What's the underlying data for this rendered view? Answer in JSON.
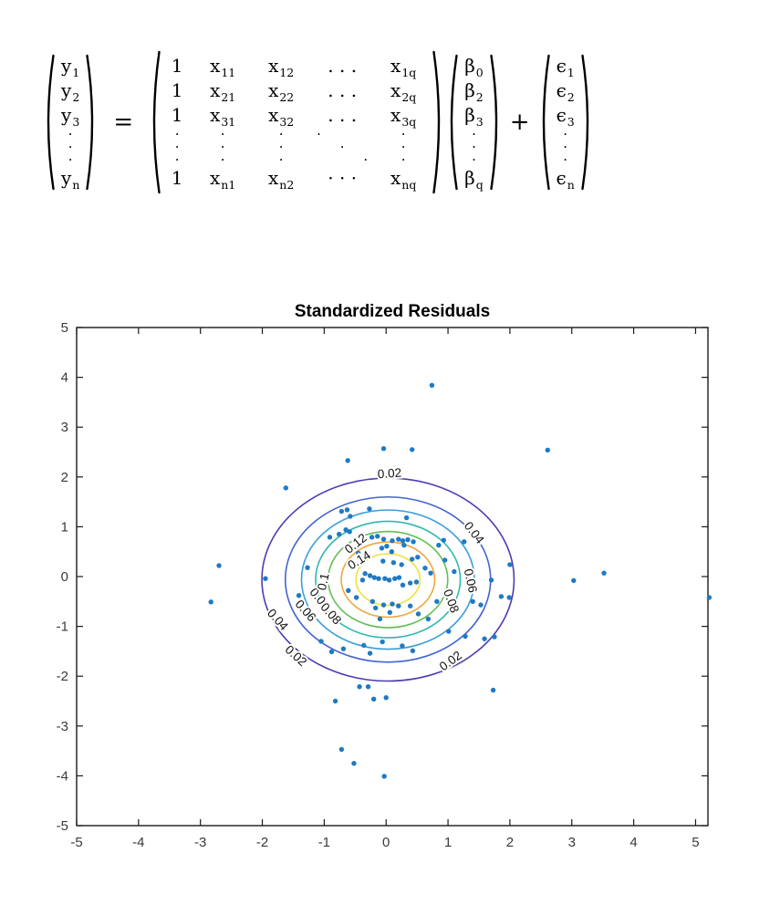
{
  "equation": {
    "equals": "=",
    "plus": "+",
    "y_vector": [
      "y|1",
      "y|2",
      "y|3",
      "⋮",
      "y|n"
    ],
    "x_matrix": [
      [
        "1",
        "x|11",
        "x|12",
        ". . .",
        "x|1q"
      ],
      [
        "1",
        "x|21",
        "x|22",
        ". . .",
        "x|2q"
      ],
      [
        "1",
        "x|31",
        "x|32",
        ". . .",
        "x|3q"
      ],
      "⋮",
      [
        "1",
        "x|n1",
        "x|n2",
        "· · ·",
        "x|nq"
      ]
    ],
    "beta_vector": [
      "β|0",
      "β|2",
      "β|3",
      "⋮",
      "β|q"
    ],
    "epsilon_vector": [
      "ϵ|1",
      "ϵ|2",
      "ϵ|3",
      "⋮",
      "ϵ|n"
    ]
  },
  "chart_data": {
    "type": "scatter",
    "title": "Standardized Residuals",
    "xlabel": "",
    "ylabel": "",
    "xlim": [
      -5,
      5.2
    ],
    "ylim": [
      -5,
      5
    ],
    "grid": false,
    "xticks": [
      -5,
      -4,
      -3,
      -2,
      -1,
      0,
      1,
      2,
      3,
      4,
      5
    ],
    "yticks": [
      -5,
      -4,
      -3,
      -2,
      -1,
      0,
      1,
      2,
      3,
      4,
      5
    ],
    "xtick_labels": [
      "-5",
      "-4",
      "-3",
      "-2",
      "-1",
      "0",
      "1",
      "2",
      "3",
      "4",
      "5"
    ],
    "ytick_labels": [
      "-5",
      "-4",
      "-3",
      "-2",
      "-1",
      "0",
      "1",
      "2",
      "3",
      "4",
      "5"
    ],
    "axis_color": "#1a1a1a",
    "tick_label_color": "#3a3a3a",
    "marker_color": "#1f7ac4",
    "contour": {
      "description": "bivariate normal density contours",
      "center": [
        0.03,
        -0.06
      ],
      "levels": [
        {
          "value": "0.02",
          "radius": 2.037,
          "color": "#4c3eb2"
        },
        {
          "value": "0.04",
          "radius": 1.658,
          "color": "#4363d0"
        },
        {
          "value": "0.06",
          "radius": 1.397,
          "color": "#3b9edc"
        },
        {
          "value": "0.08",
          "radius": 1.169,
          "color": "#2ebaae"
        },
        {
          "value": "0.1",
          "radius": 0.966,
          "color": "#63bf55"
        },
        {
          "value": "0.12",
          "radius": 0.755,
          "color": "#f0a73c"
        },
        {
          "value": "0.14",
          "radius": 0.517,
          "color": "#eee33d"
        }
      ],
      "labels": [
        {
          "text": "0.02",
          "x": 0.06,
          "y": 1.99,
          "rot": -4
        },
        {
          "text": "0.02",
          "x": -1.5,
          "y": -1.65,
          "rot": 42
        },
        {
          "text": "0.02",
          "x": 1.08,
          "y": -1.76,
          "rot": -36
        },
        {
          "text": "0.04",
          "x": 1.37,
          "y": 0.83,
          "rot": 52
        },
        {
          "text": "0.04",
          "x": -1.8,
          "y": -0.92,
          "rot": 48
        },
        {
          "text": "0.06",
          "x": 1.3,
          "y": -0.1,
          "rot": 78
        },
        {
          "text": "0.06",
          "x": -1.35,
          "y": -0.74,
          "rot": 48
        },
        {
          "text": "0.08",
          "x": 0.99,
          "y": -0.52,
          "rot": 70
        },
        {
          "text": "0.08",
          "x": -1.12,
          "y": -0.5,
          "rot": 50
        },
        {
          "text": "0.08",
          "x": -0.94,
          "y": -0.8,
          "rot": 48
        },
        {
          "text": "0.1",
          "x": -0.95,
          "y": -0.12,
          "rot": -78
        },
        {
          "text": "0.12",
          "x": -0.45,
          "y": 0.6,
          "rot": -38
        },
        {
          "text": "0.14",
          "x": -0.4,
          "y": 0.26,
          "rot": -32
        }
      ]
    },
    "points": [
      [
        0.74,
        3.84
      ],
      [
        -0.04,
        2.57
      ],
      [
        0.42,
        2.55
      ],
      [
        2.61,
        2.54
      ],
      [
        -0.62,
        2.33
      ],
      [
        -1.62,
        1.78
      ],
      [
        -0.72,
        1.31
      ],
      [
        -0.63,
        1.34
      ],
      [
        -0.27,
        1.36
      ],
      [
        -0.58,
        1.21
      ],
      [
        0.33,
        1.18
      ],
      [
        -0.65,
        0.94
      ],
      [
        -0.76,
        0.85
      ],
      [
        -0.91,
        0.79
      ],
      [
        -0.59,
        0.9
      ],
      [
        -0.23,
        0.79
      ],
      [
        -0.14,
        0.81
      ],
      [
        -0.04,
        0.75
      ],
      [
        0.1,
        0.72
      ],
      [
        0.2,
        0.75
      ],
      [
        0.27,
        0.72
      ],
      [
        0.35,
        0.74
      ],
      [
        0.44,
        0.7
      ],
      [
        0.85,
        0.63
      ],
      [
        0.93,
        0.73
      ],
      [
        1.26,
        0.7
      ],
      [
        -0.07,
        0.57
      ],
      [
        0.01,
        0.61
      ],
      [
        0.09,
        0.5
      ],
      [
        0.29,
        0.63
      ],
      [
        0.42,
        0.35
      ],
      [
        0.51,
        0.39
      ],
      [
        0.25,
        0.24
      ],
      [
        0.63,
        0.17
      ],
      [
        0.72,
        0.07
      ],
      [
        0.95,
        0.33
      ],
      [
        1.1,
        0.1
      ],
      [
        -0.34,
        0.06
      ],
      [
        -0.26,
        0.02
      ],
      [
        -0.19,
        -0.02
      ],
      [
        -0.38,
        -0.07
      ],
      [
        -0.12,
        -0.04
      ],
      [
        -0.02,
        -0.04
      ],
      [
        0.05,
        -0.07
      ],
      [
        0.14,
        -0.04
      ],
      [
        0.21,
        -0.02
      ],
      [
        0.27,
        -0.17
      ],
      [
        0.39,
        -0.13
      ],
      [
        0.49,
        -0.11
      ],
      [
        -0.52,
        0.21
      ],
      [
        -0.05,
        0.31
      ],
      [
        0.12,
        0.28
      ],
      [
        -0.45,
        0.47
      ],
      [
        -1.27,
        0.18
      ],
      [
        -0.22,
        -0.5
      ],
      [
        -0.04,
        -0.57
      ],
      [
        0.1,
        -0.55
      ],
      [
        0.2,
        -0.59
      ],
      [
        -0.48,
        -0.42
      ],
      [
        -0.61,
        -0.28
      ],
      [
        -0.1,
        -0.85
      ],
      [
        0.06,
        -0.72
      ],
      [
        -0.17,
        -0.63
      ],
      [
        0.39,
        -0.59
      ],
      [
        0.52,
        -0.75
      ],
      [
        0.68,
        -0.85
      ],
      [
        0.82,
        -0.5
      ],
      [
        -1.05,
        -1.3
      ],
      [
        -0.88,
        -1.51
      ],
      [
        -0.69,
        -1.45
      ],
      [
        -0.36,
        -1.38
      ],
      [
        -0.26,
        -1.54
      ],
      [
        -0.06,
        -1.31
      ],
      [
        0.26,
        -1.39
      ],
      [
        0.43,
        -1.49
      ],
      [
        1.01,
        -1.1
      ],
      [
        1.28,
        -1.2
      ],
      [
        1.59,
        -1.25
      ],
      [
        1.75,
        -1.21
      ],
      [
        1.7,
        -0.07
      ],
      [
        1.4,
        -0.5
      ],
      [
        1.53,
        -0.57
      ],
      [
        1.86,
        -0.4
      ],
      [
        1.99,
        -0.42
      ],
      [
        2.0,
        0.24
      ],
      [
        -1.95,
        -0.04
      ],
      [
        -1.41,
        -0.38
      ],
      [
        -2.7,
        0.22
      ],
      [
        -2.83,
        -0.51
      ],
      [
        -0.43,
        -2.21
      ],
      [
        -0.29,
        -2.21
      ],
      [
        -0.82,
        -2.5
      ],
      [
        -0.2,
        -2.46
      ],
      [
        0.0,
        -2.43
      ],
      [
        1.73,
        -2.28
      ],
      [
        -0.72,
        -3.47
      ],
      [
        -0.52,
        -3.75
      ],
      [
        -0.03,
        -4.01
      ],
      [
        3.03,
        -0.08
      ],
      [
        3.52,
        0.07
      ],
      [
        5.22,
        -0.42
      ]
    ]
  }
}
